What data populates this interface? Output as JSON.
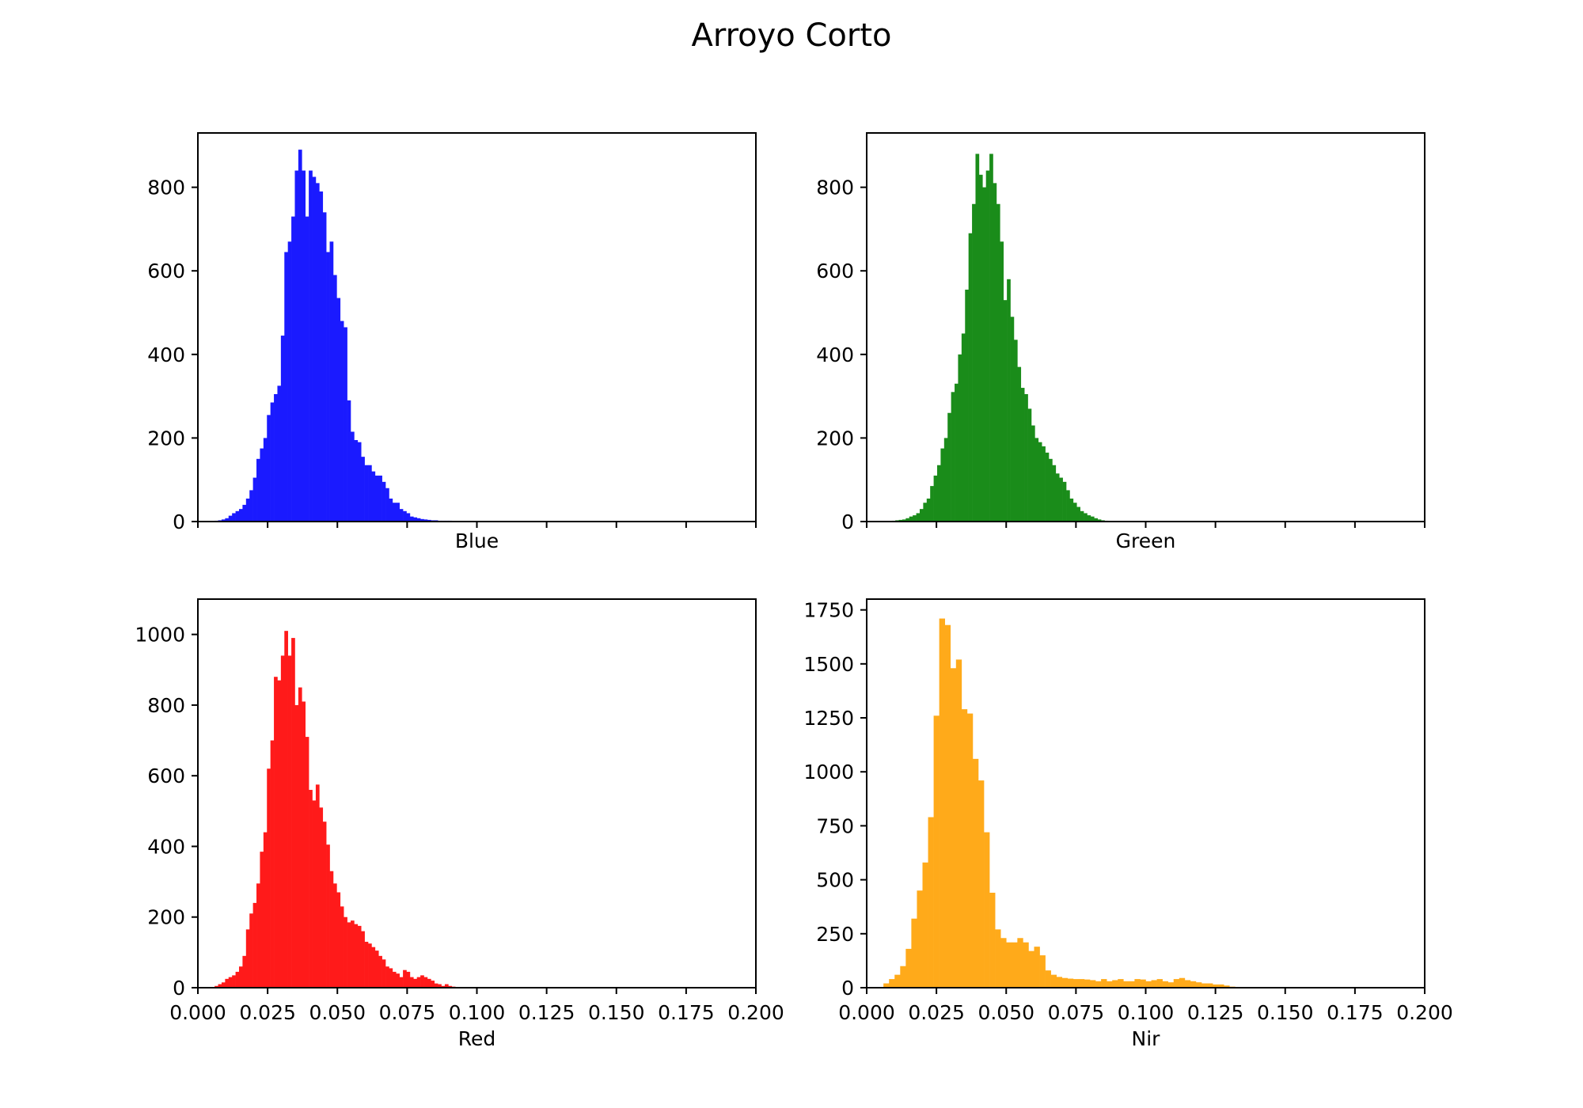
{
  "figure": {
    "title": "Arroyo Corto"
  },
  "chart_data": [
    {
      "type": "histogram",
      "xlabel": "Blue",
      "color": "#1a1aff",
      "xlim": [
        0.0,
        0.2
      ],
      "ylim": [
        0,
        930
      ],
      "xticks": [
        0.0,
        0.025,
        0.05,
        0.075,
        0.1,
        0.125,
        0.15,
        0.175,
        0.2
      ],
      "xtick_labels_visible": false,
      "yticks": [
        0,
        200,
        400,
        600,
        800
      ],
      "ytick_labels": [
        "0",
        "200",
        "400",
        "600",
        "800"
      ],
      "bin_start": 0.006,
      "bin_width": 0.00125,
      "counts": [
        2,
        3,
        5,
        8,
        14,
        20,
        25,
        30,
        40,
        55,
        75,
        105,
        150,
        175,
        200,
        255,
        285,
        305,
        325,
        445,
        645,
        670,
        730,
        840,
        890,
        840,
        730,
        840,
        825,
        810,
        790,
        740,
        645,
        670,
        590,
        535,
        480,
        465,
        290,
        215,
        195,
        190,
        155,
        135,
        135,
        120,
        110,
        110,
        95,
        80,
        55,
        45,
        45,
        30,
        25,
        20,
        12,
        10,
        8,
        6,
        5,
        4,
        3,
        3,
        2,
        2,
        2,
        2,
        1,
        1,
        1,
        1,
        1
      ],
      "grid": false
    },
    {
      "type": "histogram",
      "xlabel": "Green",
      "color": "#1a8c1a",
      "xlim": [
        0.0,
        0.2
      ],
      "ylim": [
        0,
        930
      ],
      "xticks": [
        0.0,
        0.025,
        0.05,
        0.075,
        0.1,
        0.125,
        0.15,
        0.175,
        0.2
      ],
      "xtick_labels_visible": false,
      "yticks": [
        0,
        200,
        400,
        600,
        800
      ],
      "ytick_labels": [
        "0",
        "200",
        "400",
        "600",
        "800"
      ],
      "bin_start": 0.009,
      "bin_width": 0.00125,
      "counts": [
        2,
        3,
        4,
        5,
        8,
        12,
        15,
        20,
        30,
        45,
        55,
        85,
        110,
        135,
        175,
        200,
        260,
        310,
        330,
        400,
        450,
        555,
        690,
        760,
        880,
        830,
        800,
        840,
        880,
        810,
        760,
        670,
        530,
        580,
        490,
        435,
        370,
        320,
        305,
        270,
        230,
        200,
        190,
        180,
        165,
        150,
        135,
        115,
        105,
        95,
        75,
        55,
        45,
        35,
        25,
        20,
        15,
        12,
        8,
        5,
        3,
        2,
        1,
        1,
        1
      ],
      "grid": false
    },
    {
      "type": "histogram",
      "xlabel": "Red",
      "color": "#ff1a1a",
      "xlim": [
        0.0,
        0.2
      ],
      "ylim": [
        0,
        1100
      ],
      "xticks": [
        0.0,
        0.025,
        0.05,
        0.075,
        0.1,
        0.125,
        0.15,
        0.175,
        0.2
      ],
      "xtick_labels_visible": true,
      "xtick_labels": [
        "0.000",
        "0.025",
        "0.050",
        "0.075",
        "0.100",
        "0.125",
        "0.150",
        "0.175",
        "0.200"
      ],
      "yticks": [
        0,
        200,
        400,
        600,
        800,
        1000
      ],
      "ytick_labels": [
        "0",
        "200",
        "400",
        "600",
        "800",
        "1000"
      ],
      "bin_start": 0.006,
      "bin_width": 0.00125,
      "counts": [
        5,
        10,
        15,
        25,
        30,
        35,
        45,
        60,
        90,
        165,
        210,
        240,
        295,
        385,
        440,
        620,
        700,
        880,
        870,
        940,
        1010,
        940,
        990,
        800,
        850,
        810,
        710,
        560,
        530,
        575,
        510,
        470,
        405,
        330,
        295,
        270,
        230,
        200,
        185,
        190,
        180,
        175,
        160,
        130,
        125,
        115,
        105,
        90,
        80,
        60,
        55,
        45,
        40,
        30,
        50,
        45,
        30,
        25,
        30,
        35,
        30,
        25,
        20,
        12,
        10,
        5,
        10,
        5,
        3,
        2,
        1
      ],
      "grid": false
    },
    {
      "type": "histogram",
      "xlabel": "Nir",
      "color": "#ffaa1a",
      "xlim": [
        0.0,
        0.2
      ],
      "ylim": [
        0,
        1800
      ],
      "xticks": [
        0.0,
        0.025,
        0.05,
        0.075,
        0.1,
        0.125,
        0.15,
        0.175,
        0.2
      ],
      "xtick_labels_visible": true,
      "xtick_labels": [
        "0.000",
        "0.025",
        "0.050",
        "0.075",
        "0.100",
        "0.125",
        "0.150",
        "0.175",
        "0.200"
      ],
      "yticks": [
        0,
        250,
        500,
        750,
        1000,
        1250,
        1500,
        1750
      ],
      "ytick_labels": [
        "0",
        "250",
        "500",
        "750",
        "1000",
        "1250",
        "1500",
        "1750"
      ],
      "bin_start": 0.006,
      "bin_width": 0.002,
      "counts": [
        20,
        40,
        60,
        100,
        180,
        320,
        450,
        580,
        790,
        1260,
        1710,
        1680,
        1480,
        1520,
        1290,
        1270,
        1060,
        960,
        720,
        440,
        270,
        230,
        210,
        210,
        230,
        210,
        170,
        190,
        150,
        80,
        60,
        50,
        45,
        42,
        40,
        40,
        38,
        35,
        30,
        40,
        30,
        35,
        40,
        30,
        30,
        40,
        38,
        30,
        35,
        40,
        30,
        25,
        40,
        45,
        35,
        30,
        25,
        20,
        20,
        15,
        15,
        10,
        5,
        3,
        2,
        1
      ],
      "grid": false
    }
  ]
}
